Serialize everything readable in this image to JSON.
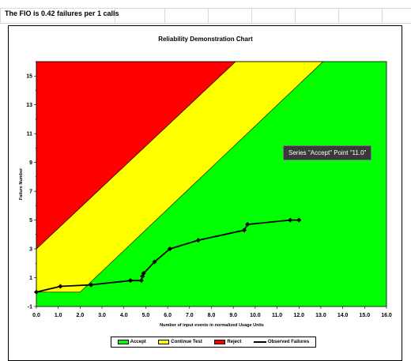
{
  "sheet": {
    "fio_text": "The FIO is 0.42 failures per 1 calls"
  },
  "tooltip": {
    "text": "Series \"Accept\" Point \"11.0\""
  },
  "legend": {
    "items": [
      {
        "label": "Accept",
        "color": "#00ff00",
        "kind": "swatch"
      },
      {
        "label": "Continue Test",
        "color": "#ffff00",
        "kind": "swatch"
      },
      {
        "label": "Reject",
        "color": "#ff0000",
        "kind": "swatch"
      },
      {
        "label": "Observed Failures",
        "color": "#000000",
        "kind": "line"
      }
    ]
  },
  "chart_data": {
    "type": "area",
    "title": "Reliability Demonstration Chart",
    "xlabel": "Number of input events in normalized Usage Units",
    "ylabel": "Failure Number",
    "xlim": [
      0,
      16
    ],
    "ylim": [
      -1,
      16
    ],
    "x_ticks": [
      "0.0",
      "1.0",
      "2.0",
      "3.0",
      "4.0",
      "5.0",
      "6.0",
      "7.0",
      "8.0",
      "9.0",
      "10.0",
      "11.0",
      "12.0",
      "13.0",
      "14.0",
      "15.0",
      "16.0"
    ],
    "y_ticks": [
      "-1",
      "1",
      "3",
      "5",
      "7",
      "9",
      "11",
      "13",
      "15"
    ],
    "grid": false,
    "legend_position": "bottom",
    "colors": {
      "accept": "#00ff00",
      "continue": "#ffff00",
      "reject": "#ff0000",
      "observed": "#000000"
    },
    "regions": {
      "reject_boundary": {
        "x": [
          0,
          9.1
        ],
        "y": [
          3,
          16
        ]
      },
      "accept_boundary": {
        "x": [
          2.0,
          13.1
        ],
        "y": [
          0,
          16
        ]
      },
      "accept_floor": {
        "x": [
          0,
          2.0
        ],
        "y": [
          0,
          0
        ]
      }
    },
    "series": [
      {
        "name": "Observed Failures",
        "x": [
          0.0,
          1.1,
          2.5,
          4.3,
          4.8,
          4.85,
          4.9,
          5.4,
          6.1,
          7.4,
          9.5,
          9.65,
          11.6,
          12.0
        ],
        "y": [
          0.0,
          0.4,
          0.5,
          0.8,
          0.8,
          1.1,
          1.3,
          2.1,
          3.0,
          3.6,
          4.3,
          4.7,
          5.0,
          5.0
        ]
      }
    ]
  }
}
